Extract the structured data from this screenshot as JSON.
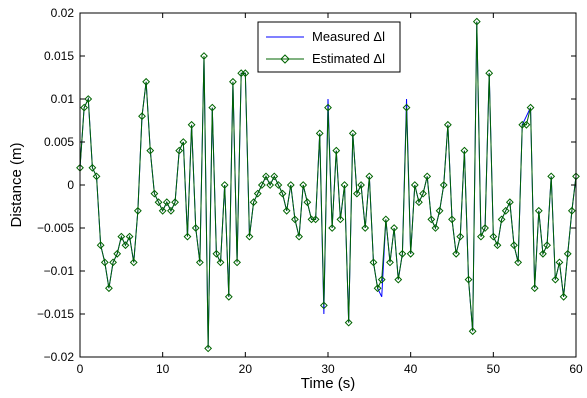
{
  "chart_data": {
    "type": "line",
    "title": "",
    "xlabel": "Time (s)",
    "ylabel": "Distance (m)",
    "xlim": [
      0,
      60
    ],
    "ylim": [
      -0.02,
      0.02
    ],
    "xticks": [
      0,
      10,
      20,
      30,
      40,
      50,
      60
    ],
    "yticks": [
      -0.02,
      -0.015,
      -0.01,
      -0.005,
      0,
      0.005,
      0.01,
      0.015,
      0.02
    ],
    "xtick_labels": [
      "0",
      "10",
      "20",
      "30",
      "40",
      "50",
      "60"
    ],
    "ytick_labels": [
      "−0.02",
      "−0.015",
      "−0.01",
      "−0.005",
      "0",
      "0.005",
      "0.01",
      "0.015",
      "0.02"
    ],
    "grid": false,
    "legend_position": "top-center",
    "x": [
      0,
      0.5,
      1,
      1.5,
      2,
      2.5,
      3,
      3.5,
      4,
      4.5,
      5,
      5.5,
      6,
      6.5,
      7,
      7.5,
      8,
      8.5,
      9,
      9.5,
      10,
      10.5,
      11,
      11.5,
      12,
      12.5,
      13,
      13.5,
      14,
      14.5,
      15,
      15.5,
      16,
      16.5,
      17,
      17.5,
      18,
      18.5,
      19,
      19.5,
      20,
      20.5,
      21,
      21.5,
      22,
      22.5,
      23,
      23.5,
      24,
      24.5,
      25,
      25.5,
      26,
      26.5,
      27,
      27.5,
      28,
      28.5,
      29,
      29.5,
      30,
      30.5,
      31,
      31.5,
      32,
      32.5,
      33,
      33.5,
      34,
      34.5,
      35,
      35.5,
      36,
      36.5,
      37,
      37.5,
      38,
      38.5,
      39,
      39.5,
      40,
      40.5,
      41,
      41.5,
      42,
      42.5,
      43,
      43.5,
      44,
      44.5,
      45,
      45.5,
      46,
      46.5,
      47,
      47.5,
      48,
      48.5,
      49,
      49.5,
      50,
      50.5,
      51,
      51.5,
      52,
      52.5,
      53,
      53.5,
      54,
      54.5,
      55,
      55.5,
      56,
      56.5,
      57,
      57.5,
      58,
      58.5,
      59,
      59.5,
      60
    ],
    "series": [
      {
        "name": "Measured Δl",
        "color": "#0000ff",
        "marker": "none",
        "values": [
          0.002,
          0.009,
          0.01,
          0.002,
          0.001,
          -0.007,
          -0.009,
          -0.012,
          -0.009,
          -0.008,
          -0.006,
          -0.007,
          -0.006,
          -0.009,
          -0.003,
          0.008,
          0.012,
          0.004,
          -0.001,
          -0.002,
          -0.003,
          -0.002,
          -0.003,
          -0.002,
          0.004,
          0.005,
          -0.006,
          0.007,
          -0.005,
          -0.009,
          0.015,
          -0.019,
          0.009,
          -0.008,
          -0.009,
          0.0,
          -0.013,
          0.012,
          -0.009,
          0.013,
          0.013,
          -0.006,
          -0.002,
          -0.001,
          0.0,
          0.001,
          0.0,
          0.001,
          0.0,
          -0.001,
          -0.003,
          0.0,
          -0.004,
          -0.006,
          0.0,
          -0.002,
          -0.004,
          -0.004,
          0.006,
          -0.015,
          0.01,
          -0.005,
          0.004,
          -0.004,
          0.0,
          -0.016,
          0.006,
          -0.001,
          0.0,
          -0.005,
          0.001,
          -0.009,
          -0.012,
          -0.013,
          -0.004,
          -0.009,
          -0.005,
          -0.011,
          -0.008,
          0.01,
          -0.008,
          0.0,
          -0.002,
          -0.001,
          0.001,
          -0.004,
          -0.005,
          -0.003,
          0.0,
          0.007,
          -0.004,
          -0.008,
          -0.006,
          0.004,
          -0.011,
          -0.017,
          0.019,
          -0.006,
          -0.005,
          0.013,
          -0.006,
          -0.007,
          -0.004,
          -0.003,
          -0.002,
          -0.007,
          -0.009,
          0.007,
          0.008,
          0.009,
          -0.012,
          -0.003,
          -0.008,
          -0.007,
          0.001,
          -0.011,
          -0.009,
          -0.013,
          -0.008,
          -0.003,
          0.001
        ]
      },
      {
        "name": "Estimated Δl",
        "color": "#006400",
        "marker": "diamond",
        "values": [
          0.002,
          0.009,
          0.01,
          0.002,
          0.001,
          -0.007,
          -0.009,
          -0.012,
          -0.009,
          -0.008,
          -0.006,
          -0.007,
          -0.006,
          -0.009,
          -0.003,
          0.008,
          0.012,
          0.004,
          -0.001,
          -0.002,
          -0.003,
          -0.002,
          -0.003,
          -0.002,
          0.004,
          0.005,
          -0.006,
          0.007,
          -0.005,
          -0.009,
          0.015,
          -0.019,
          0.009,
          -0.008,
          -0.009,
          0.0,
          -0.013,
          0.012,
          -0.009,
          0.013,
          0.013,
          -0.006,
          -0.002,
          -0.001,
          0.0,
          0.001,
          0.0,
          0.001,
          0.0,
          -0.001,
          -0.003,
          0.0,
          -0.004,
          -0.006,
          0.0,
          -0.002,
          -0.004,
          -0.004,
          0.006,
          -0.014,
          0.009,
          -0.005,
          0.004,
          -0.004,
          0.0,
          -0.016,
          0.006,
          -0.001,
          0.0,
          -0.005,
          0.001,
          -0.009,
          -0.012,
          -0.011,
          -0.004,
          -0.009,
          -0.005,
          -0.011,
          -0.008,
          0.009,
          -0.008,
          0.0,
          -0.002,
          -0.001,
          0.001,
          -0.004,
          -0.005,
          -0.003,
          0.0,
          0.007,
          -0.004,
          -0.008,
          -0.006,
          0.004,
          -0.011,
          -0.017,
          0.019,
          -0.006,
          -0.005,
          0.013,
          -0.006,
          -0.007,
          -0.004,
          -0.003,
          -0.002,
          -0.007,
          -0.009,
          0.007,
          0.007,
          0.009,
          -0.012,
          -0.003,
          -0.008,
          -0.007,
          0.001,
          -0.011,
          -0.009,
          -0.013,
          -0.008,
          -0.003,
          0.001
        ]
      }
    ]
  }
}
